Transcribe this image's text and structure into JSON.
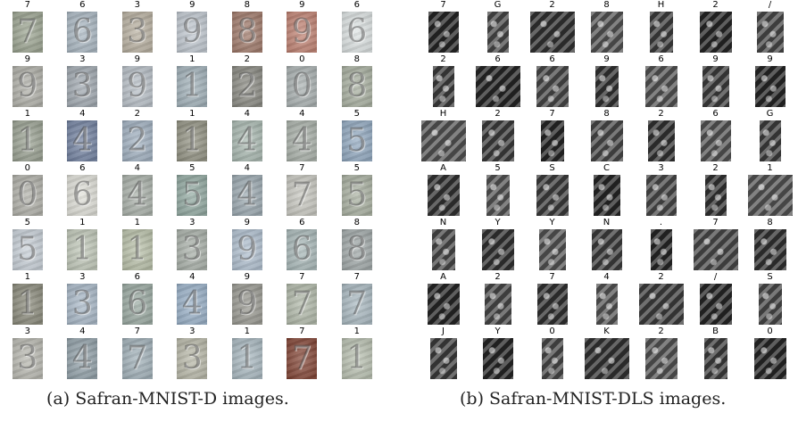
{
  "panel_a": {
    "caption": "(a) Safran-MNIST-D images.",
    "rows": [
      [
        "7",
        "6",
        "3",
        "9",
        "8",
        "9",
        "6"
      ],
      [
        "9",
        "3",
        "9",
        "1",
        "2",
        "0",
        "8"
      ],
      [
        "1",
        "4",
        "2",
        "1",
        "4",
        "4",
        "5"
      ],
      [
        "0",
        "6",
        "4",
        "5",
        "4",
        "7",
        "5"
      ],
      [
        "5",
        "1",
        "1",
        "3",
        "9",
        "6",
        "8"
      ],
      [
        "1",
        "3",
        "6",
        "4",
        "9",
        "7",
        "7"
      ],
      [
        "3",
        "4",
        "7",
        "3",
        "1",
        "7",
        "1"
      ]
    ]
  },
  "panel_b": {
    "caption": "(b) Safran-MNIST-DLS images.",
    "rows": [
      [
        "7",
        "G",
        "2",
        "8",
        "H",
        "2",
        "/"
      ],
      [
        "2",
        "6",
        "6",
        "9",
        "6",
        "9",
        "9"
      ],
      [
        "H",
        "2",
        "7",
        "8",
        "2",
        "6",
        "G"
      ],
      [
        "A",
        "5",
        "S",
        "C",
        "3",
        "2",
        "1"
      ],
      [
        "N",
        "Y",
        "Y",
        "N",
        ".",
        "7",
        "8"
      ],
      [
        "A",
        "2",
        "7",
        "4",
        "2",
        "/",
        "S"
      ],
      [
        "J",
        "Y",
        "0",
        "K",
        "2",
        "B",
        "0"
      ]
    ]
  },
  "colors": {
    "d_tiles": [
      [
        "#9aa38f",
        "#a9b7c2",
        "#b8b0a0",
        "#c0c8d0",
        "#a07868",
        "#c08070",
        "#dde3e3"
      ],
      [
        "#b0b0a8",
        "#a0a8b0",
        "#b8c0c8",
        "#a0b0b8",
        "#888880",
        "#a8b0b0",
        "#a8b0a0"
      ],
      [
        "#98a090",
        "#7080a0",
        "#a0b0c0",
        "#909080",
        "#a8b8b0",
        "#a8b0a8",
        "#90a8c0"
      ],
      [
        "#b0b0a8",
        "#e0e0d8",
        "#a8b0a8",
        "#90a8a0",
        "#9aa8b0",
        "#c8c8c0",
        "#a8b0a0"
      ],
      [
        "#c8d0d8",
        "#c0c8b8",
        "#b8c0a8",
        "#a8b0a8",
        "#b0c0d0",
        "#a8b8b8",
        "#a0a8a8"
      ],
      [
        "#888878",
        "#a8b8c8",
        "#98a8a0",
        "#98b0c8",
        "#989890",
        "#b0b8a8",
        "#a8b8c0"
      ],
      [
        "#b8b8b0",
        "#90a0a8",
        "#a0b0b8",
        "#b8b8a8",
        "#a8b8c0",
        "#804030",
        "#b8c0b0"
      ]
    ]
  }
}
